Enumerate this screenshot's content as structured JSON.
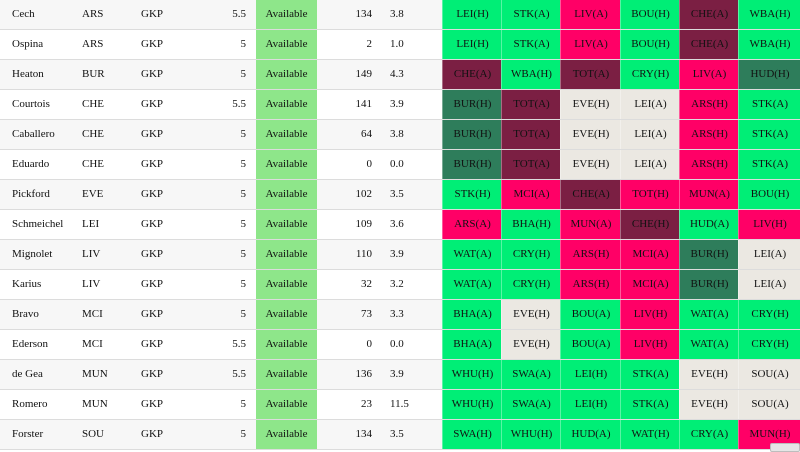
{
  "colors": {
    "easy": "#00ee76",
    "hard": "#ff0066",
    "very_hard": "#7b1f43",
    "neutral": "#ebe8e2",
    "very_easy": "#2e7d5b",
    "available": "#8ee68a"
  },
  "players": [
    {
      "name": "Cech",
      "team": "ARS",
      "pos": "GKP",
      "price": "5.5",
      "status": "Available",
      "points": "134",
      "form": "3.8",
      "fixtures": [
        {
          "label": "LEI(H)",
          "diff": "easy"
        },
        {
          "label": "STK(A)",
          "diff": "easy"
        },
        {
          "label": "LIV(A)",
          "diff": "hard"
        },
        {
          "label": "BOU(H)",
          "diff": "easy"
        },
        {
          "label": "CHE(A)",
          "diff": "very_hard"
        },
        {
          "label": "WBA(H)",
          "diff": "easy"
        }
      ]
    },
    {
      "name": "Ospina",
      "team": "ARS",
      "pos": "GKP",
      "price": "5",
      "status": "Available",
      "points": "2",
      "form": "1.0",
      "fixtures": [
        {
          "label": "LEI(H)",
          "diff": "easy"
        },
        {
          "label": "STK(A)",
          "diff": "easy"
        },
        {
          "label": "LIV(A)",
          "diff": "hard"
        },
        {
          "label": "BOU(H)",
          "diff": "easy"
        },
        {
          "label": "CHE(A)",
          "diff": "very_hard"
        },
        {
          "label": "WBA(H)",
          "diff": "easy"
        }
      ]
    },
    {
      "name": "Heaton",
      "team": "BUR",
      "pos": "GKP",
      "price": "5",
      "status": "Available",
      "points": "149",
      "form": "4.3",
      "fixtures": [
        {
          "label": "CHE(A)",
          "diff": "very_hard"
        },
        {
          "label": "WBA(H)",
          "diff": "easy"
        },
        {
          "label": "TOT(A)",
          "diff": "very_hard"
        },
        {
          "label": "CRY(H)",
          "diff": "easy"
        },
        {
          "label": "LIV(A)",
          "diff": "hard"
        },
        {
          "label": "HUD(H)",
          "diff": "very_easy"
        }
      ]
    },
    {
      "name": "Courtois",
      "team": "CHE",
      "pos": "GKP",
      "price": "5.5",
      "status": "Available",
      "points": "141",
      "form": "3.9",
      "fixtures": [
        {
          "label": "BUR(H)",
          "diff": "very_easy"
        },
        {
          "label": "TOT(A)",
          "diff": "very_hard"
        },
        {
          "label": "EVE(H)",
          "diff": "neutral"
        },
        {
          "label": "LEI(A)",
          "diff": "neutral"
        },
        {
          "label": "ARS(H)",
          "diff": "hard"
        },
        {
          "label": "STK(A)",
          "diff": "easy"
        }
      ]
    },
    {
      "name": "Caballero",
      "team": "CHE",
      "pos": "GKP",
      "price": "5",
      "status": "Available",
      "points": "64",
      "form": "3.8",
      "fixtures": [
        {
          "label": "BUR(H)",
          "diff": "very_easy"
        },
        {
          "label": "TOT(A)",
          "diff": "very_hard"
        },
        {
          "label": "EVE(H)",
          "diff": "neutral"
        },
        {
          "label": "LEI(A)",
          "diff": "neutral"
        },
        {
          "label": "ARS(H)",
          "diff": "hard"
        },
        {
          "label": "STK(A)",
          "diff": "easy"
        }
      ]
    },
    {
      "name": "Eduardo",
      "team": "CHE",
      "pos": "GKP",
      "price": "5",
      "status": "Available",
      "points": "0",
      "form": "0.0",
      "fixtures": [
        {
          "label": "BUR(H)",
          "diff": "very_easy"
        },
        {
          "label": "TOT(A)",
          "diff": "very_hard"
        },
        {
          "label": "EVE(H)",
          "diff": "neutral"
        },
        {
          "label": "LEI(A)",
          "diff": "neutral"
        },
        {
          "label": "ARS(H)",
          "diff": "hard"
        },
        {
          "label": "STK(A)",
          "diff": "easy"
        }
      ]
    },
    {
      "name": "Pickford",
      "team": "EVE",
      "pos": "GKP",
      "price": "5",
      "status": "Available",
      "points": "102",
      "form": "3.5",
      "fixtures": [
        {
          "label": "STK(H)",
          "diff": "easy"
        },
        {
          "label": "MCI(A)",
          "diff": "hard"
        },
        {
          "label": "CHE(A)",
          "diff": "very_hard"
        },
        {
          "label": "TOT(H)",
          "diff": "hard"
        },
        {
          "label": "MUN(A)",
          "diff": "hard"
        },
        {
          "label": "BOU(H)",
          "diff": "easy"
        }
      ]
    },
    {
      "name": "Schmeichel",
      "team": "LEI",
      "pos": "GKP",
      "price": "5",
      "status": "Available",
      "points": "109",
      "form": "3.6",
      "fixtures": [
        {
          "label": "ARS(A)",
          "diff": "hard"
        },
        {
          "label": "BHA(H)",
          "diff": "easy"
        },
        {
          "label": "MUN(A)",
          "diff": "hard"
        },
        {
          "label": "CHE(H)",
          "diff": "very_hard"
        },
        {
          "label": "HUD(A)",
          "diff": "easy"
        },
        {
          "label": "LIV(H)",
          "diff": "hard"
        }
      ]
    },
    {
      "name": "Mignolet",
      "team": "LIV",
      "pos": "GKP",
      "price": "5",
      "status": "Available",
      "points": "110",
      "form": "3.9",
      "fixtures": [
        {
          "label": "WAT(A)",
          "diff": "easy"
        },
        {
          "label": "CRY(H)",
          "diff": "easy"
        },
        {
          "label": "ARS(H)",
          "diff": "hard"
        },
        {
          "label": "MCI(A)",
          "diff": "hard"
        },
        {
          "label": "BUR(H)",
          "diff": "very_easy"
        },
        {
          "label": "LEI(A)",
          "diff": "neutral"
        }
      ]
    },
    {
      "name": "Karius",
      "team": "LIV",
      "pos": "GKP",
      "price": "5",
      "status": "Available",
      "points": "32",
      "form": "3.2",
      "fixtures": [
        {
          "label": "WAT(A)",
          "diff": "easy"
        },
        {
          "label": "CRY(H)",
          "diff": "easy"
        },
        {
          "label": "ARS(H)",
          "diff": "hard"
        },
        {
          "label": "MCI(A)",
          "diff": "hard"
        },
        {
          "label": "BUR(H)",
          "diff": "very_easy"
        },
        {
          "label": "LEI(A)",
          "diff": "neutral"
        }
      ]
    },
    {
      "name": "Bravo",
      "team": "MCI",
      "pos": "GKP",
      "price": "5",
      "status": "Available",
      "points": "73",
      "form": "3.3",
      "fixtures": [
        {
          "label": "BHA(A)",
          "diff": "easy"
        },
        {
          "label": "EVE(H)",
          "diff": "neutral"
        },
        {
          "label": "BOU(A)",
          "diff": "easy"
        },
        {
          "label": "LIV(H)",
          "diff": "hard"
        },
        {
          "label": "WAT(A)",
          "diff": "easy"
        },
        {
          "label": "CRY(H)",
          "diff": "easy"
        }
      ]
    },
    {
      "name": "Ederson",
      "team": "MCI",
      "pos": "GKP",
      "price": "5.5",
      "status": "Available",
      "points": "0",
      "form": "0.0",
      "fixtures": [
        {
          "label": "BHA(A)",
          "diff": "easy"
        },
        {
          "label": "EVE(H)",
          "diff": "neutral"
        },
        {
          "label": "BOU(A)",
          "diff": "easy"
        },
        {
          "label": "LIV(H)",
          "diff": "hard"
        },
        {
          "label": "WAT(A)",
          "diff": "easy"
        },
        {
          "label": "CRY(H)",
          "diff": "easy"
        }
      ]
    },
    {
      "name": "de Gea",
      "team": "MUN",
      "pos": "GKP",
      "price": "5.5",
      "status": "Available",
      "points": "136",
      "form": "3.9",
      "fixtures": [
        {
          "label": "WHU(H)",
          "diff": "easy"
        },
        {
          "label": "SWA(A)",
          "diff": "easy"
        },
        {
          "label": "LEI(H)",
          "diff": "easy"
        },
        {
          "label": "STK(A)",
          "diff": "easy"
        },
        {
          "label": "EVE(H)",
          "diff": "neutral"
        },
        {
          "label": "SOU(A)",
          "diff": "neutral"
        }
      ]
    },
    {
      "name": "Romero",
      "team": "MUN",
      "pos": "GKP",
      "price": "5",
      "status": "Available",
      "points": "23",
      "form": "11.5",
      "fixtures": [
        {
          "label": "WHU(H)",
          "diff": "easy"
        },
        {
          "label": "SWA(A)",
          "diff": "easy"
        },
        {
          "label": "LEI(H)",
          "diff": "easy"
        },
        {
          "label": "STK(A)",
          "diff": "easy"
        },
        {
          "label": "EVE(H)",
          "diff": "neutral"
        },
        {
          "label": "SOU(A)",
          "diff": "neutral"
        }
      ]
    },
    {
      "name": "Forster",
      "team": "SOU",
      "pos": "GKP",
      "price": "5",
      "status": "Available",
      "points": "134",
      "form": "3.5",
      "fixtures": [
        {
          "label": "SWA(H)",
          "diff": "easy"
        },
        {
          "label": "WHU(H)",
          "diff": "easy"
        },
        {
          "label": "HUD(A)",
          "diff": "easy"
        },
        {
          "label": "WAT(H)",
          "diff": "easy"
        },
        {
          "label": "CRY(A)",
          "diff": "easy"
        },
        {
          "label": "MUN(H)",
          "diff": "hard"
        }
      ]
    }
  ]
}
